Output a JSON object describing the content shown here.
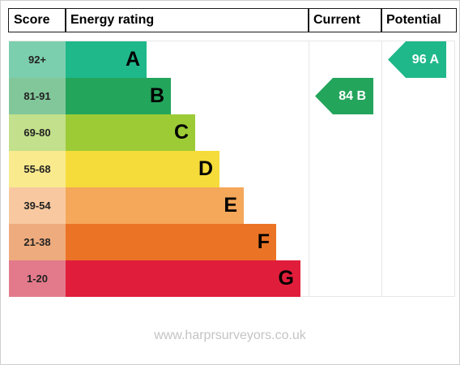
{
  "headers": {
    "score": "Score",
    "rating": "Energy rating",
    "current": "Current",
    "potential": "Potential"
  },
  "chart_data": {
    "type": "bar",
    "bands": [
      {
        "letter": "A",
        "range": "92+",
        "min": 92,
        "max": 100,
        "color": "#1fb88a",
        "score_color": "#7ccfae"
      },
      {
        "letter": "B",
        "range": "81-91",
        "min": 81,
        "max": 91,
        "color": "#24a55c",
        "score_color": "#82c79a"
      },
      {
        "letter": "C",
        "range": "69-80",
        "min": 69,
        "max": 80,
        "color": "#9ccb36",
        "score_color": "#c3e08c"
      },
      {
        "letter": "D",
        "range": "55-68",
        "min": 55,
        "max": 68,
        "color": "#f5dc3a",
        "score_color": "#f9ea8e"
      },
      {
        "letter": "E",
        "range": "39-54",
        "min": 39,
        "max": 54,
        "color": "#f5a75a",
        "score_color": "#f8c9a0"
      },
      {
        "letter": "F",
        "range": "21-38",
        "min": 21,
        "max": 38,
        "color": "#eb7325",
        "score_color": "#eeab7d"
      },
      {
        "letter": "G",
        "range": "1-20",
        "min": 1,
        "max": 20,
        "color": "#e01e3b",
        "score_color": "#e37a8b"
      }
    ],
    "current": {
      "value": 84,
      "band": "B",
      "label": "84 B",
      "color": "#24a55c"
    },
    "potential": {
      "value": 96,
      "band": "A",
      "label": "96 A",
      "color": "#1fb88a"
    }
  },
  "footer": "www.harprsurveyors.co.uk"
}
